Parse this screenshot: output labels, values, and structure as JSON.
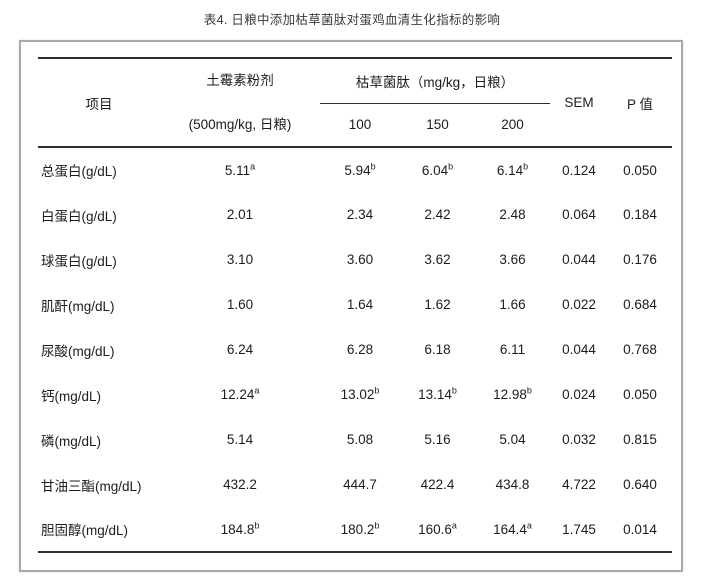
{
  "page_title": "表4. 日粮中添加枯草菌肽对蛋鸡血清生化指标的影响",
  "table": {
    "header": {
      "item_label": "项目",
      "antibiotic_name": "土霉素粉剂",
      "antibiotic_dose": "(500mg/kg, 日粮)",
      "peptide_group_label": "枯草菌肽（mg/kg，日粮）",
      "dose_levels": [
        "100",
        "150",
        "200"
      ],
      "sem_label": "SEM",
      "p_label": "P 值"
    },
    "rows": [
      {
        "item": "总蛋白(g/dL)",
        "cells": [
          {
            "v": "5.11",
            "s": "a"
          },
          {
            "v": "5.94",
            "s": "b"
          },
          {
            "v": "6.04",
            "s": "b"
          },
          {
            "v": "6.14",
            "s": "b"
          },
          {
            "v": "0.124"
          },
          {
            "v": "0.050"
          }
        ]
      },
      {
        "item": "白蛋白(g/dL)",
        "cells": [
          {
            "v": "2.01"
          },
          {
            "v": "2.34"
          },
          {
            "v": "2.42"
          },
          {
            "v": "2.48"
          },
          {
            "v": "0.064"
          },
          {
            "v": "0.184"
          }
        ]
      },
      {
        "item": "球蛋白(g/dL)",
        "cells": [
          {
            "v": "3.10"
          },
          {
            "v": "3.60"
          },
          {
            "v": "3.62"
          },
          {
            "v": "3.66"
          },
          {
            "v": "0.044"
          },
          {
            "v": "0.176"
          }
        ]
      },
      {
        "item": "肌酐(mg/dL)",
        "cells": [
          {
            "v": "1.60"
          },
          {
            "v": "1.64"
          },
          {
            "v": "1.62"
          },
          {
            "v": "1.66"
          },
          {
            "v": "0.022"
          },
          {
            "v": "0.684"
          }
        ]
      },
      {
        "item": "尿酸(mg/dL)",
        "cells": [
          {
            "v": "6.24"
          },
          {
            "v": "6.28"
          },
          {
            "v": "6.18"
          },
          {
            "v": "6.11"
          },
          {
            "v": "0.044"
          },
          {
            "v": "0.768"
          }
        ]
      },
      {
        "item": "钙(mg/dL)",
        "cells": [
          {
            "v": "12.24",
            "s": "a"
          },
          {
            "v": "13.02",
            "s": "b"
          },
          {
            "v": "13.14",
            "s": "b"
          },
          {
            "v": "12.98",
            "s": "b"
          },
          {
            "v": "0.024"
          },
          {
            "v": "0.050"
          }
        ]
      },
      {
        "item": "磷(mg/dL)",
        "cells": [
          {
            "v": "5.14"
          },
          {
            "v": "5.08"
          },
          {
            "v": "5.16"
          },
          {
            "v": "5.04"
          },
          {
            "v": "0.032"
          },
          {
            "v": "0.815"
          }
        ]
      },
      {
        "item": "甘油三酯(mg/dL)",
        "cells": [
          {
            "v": "432.2"
          },
          {
            "v": "444.7"
          },
          {
            "v": "422.4"
          },
          {
            "v": "434.8"
          },
          {
            "v": "4.722"
          },
          {
            "v": "0.640"
          }
        ]
      },
      {
        "item": "胆固醇(mg/dL)",
        "cells": [
          {
            "v": "184.8",
            "s": "b"
          },
          {
            "v": "180.2",
            "s": "b"
          },
          {
            "v": "160.6",
            "s": "a"
          },
          {
            "v": "164.4",
            "s": "a"
          },
          {
            "v": "1.745"
          },
          {
            "v": "0.014"
          }
        ]
      }
    ]
  }
}
